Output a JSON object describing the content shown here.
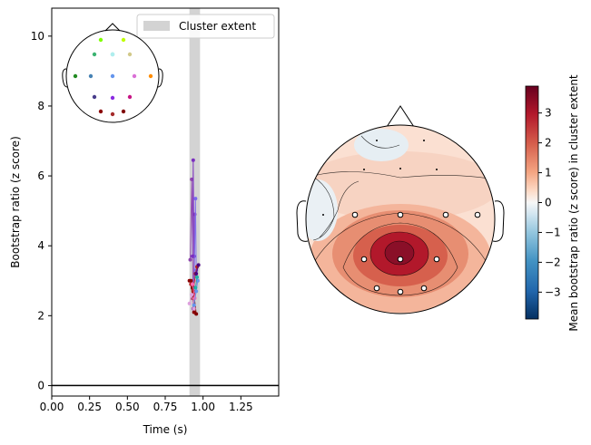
{
  "chart_data": [
    {
      "type": "line",
      "xlabel": "Time (s)",
      "ylabel": "Bootstrap ratio (z score)",
      "xlim": [
        0.0,
        1.5
      ],
      "ylim": [
        -0.3,
        10.8
      ],
      "xticks": [
        "0.00",
        "0.25",
        "0.50",
        "0.75",
        "1.00",
        "1.25"
      ],
      "yticks": [
        "0",
        "2",
        "4",
        "6",
        "8",
        "10"
      ],
      "legend": {
        "label": "Cluster extent",
        "position": "top-right",
        "color": "#d3d3d3"
      },
      "cluster_extent": [
        0.91,
        0.98
      ],
      "zero_line": 0,
      "series": [
        {
          "color": "#8e44ad",
          "points": [
            [
              0.915,
              3.6
            ],
            [
              0.925,
              5.9
            ],
            [
              0.935,
              2.2
            ],
            [
              0.945,
              4.9
            ]
          ]
        },
        {
          "color": "#7b2fbf",
          "points": [
            [
              0.93,
              3.7
            ],
            [
              0.935,
              6.45
            ],
            [
              0.94,
              3.7
            ]
          ]
        },
        {
          "color": "#7b68ee",
          "points": [
            [
              0.94,
              2.6
            ],
            [
              0.95,
              5.35
            ],
            [
              0.955,
              3.3
            ]
          ]
        },
        {
          "color": "#8b0000",
          "points": [
            [
              0.91,
              3.0
            ],
            [
              0.92,
              3.0
            ],
            [
              0.93,
              2.5
            ],
            [
              0.94,
              2.1
            ]
          ]
        },
        {
          "color": "#b22222",
          "points": [
            [
              0.92,
              2.9
            ],
            [
              0.935,
              2.7
            ],
            [
              0.95,
              3.2
            ],
            [
              0.96,
              3.4
            ]
          ]
        },
        {
          "color": "#800000",
          "points": [
            [
              0.93,
              2.8
            ],
            [
              0.94,
              2.6
            ],
            [
              0.955,
              2.05
            ]
          ]
        },
        {
          "color": "#dda0dd",
          "points": [
            [
              0.91,
              2.35
            ],
            [
              0.925,
              2.6
            ],
            [
              0.94,
              2.2
            ]
          ]
        },
        {
          "color": "#ff69b4",
          "points": [
            [
              0.93,
              2.9
            ],
            [
              0.945,
              2.5
            ],
            [
              0.96,
              3.0
            ]
          ]
        },
        {
          "color": "#6495ed",
          "points": [
            [
              0.94,
              2.3
            ],
            [
              0.955,
              2.7
            ],
            [
              0.965,
              3.0
            ]
          ]
        },
        {
          "color": "#20b2aa",
          "points": [
            [
              0.95,
              2.8
            ],
            [
              0.96,
              3.1
            ]
          ]
        },
        {
          "color": "#4b0082",
          "points": [
            [
              0.955,
              3.2
            ],
            [
              0.97,
              3.45
            ]
          ]
        }
      ]
    },
    {
      "type": "heatmap",
      "description_only": false,
      "colorbar": {
        "label": "Mean bootstrap ratio (z score) in cluster extent",
        "ticks": [
          "3",
          "2",
          "1",
          "0",
          "−1",
          "−2",
          "−3"
        ],
        "tick_values": [
          3,
          2,
          1,
          0,
          -1,
          -2,
          -3
        ],
        "range": [
          -3.9,
          3.9
        ],
        "colormap": "RdBu_r"
      }
    }
  ],
  "sensor_inset": {
    "sensors": [
      {
        "color": "#7fff00"
      },
      {
        "color": "#bfff00"
      },
      {
        "color": "#3cb371"
      },
      {
        "color": "#48d1cc"
      },
      {
        "color": "#afeeee"
      },
      {
        "color": "#d2c98a"
      },
      {
        "color": "#228b22"
      },
      {
        "color": "#4682b4"
      },
      {
        "color": "#6495ed"
      },
      {
        "color": "#da70d6"
      },
      {
        "color": "#ff8c00"
      },
      {
        "color": "#483d8b"
      },
      {
        "color": "#8a2be2"
      },
      {
        "color": "#c71585"
      },
      {
        "color": "#8b0000"
      },
      {
        "color": "#a52a2a"
      },
      {
        "color": "#800000"
      }
    ]
  }
}
